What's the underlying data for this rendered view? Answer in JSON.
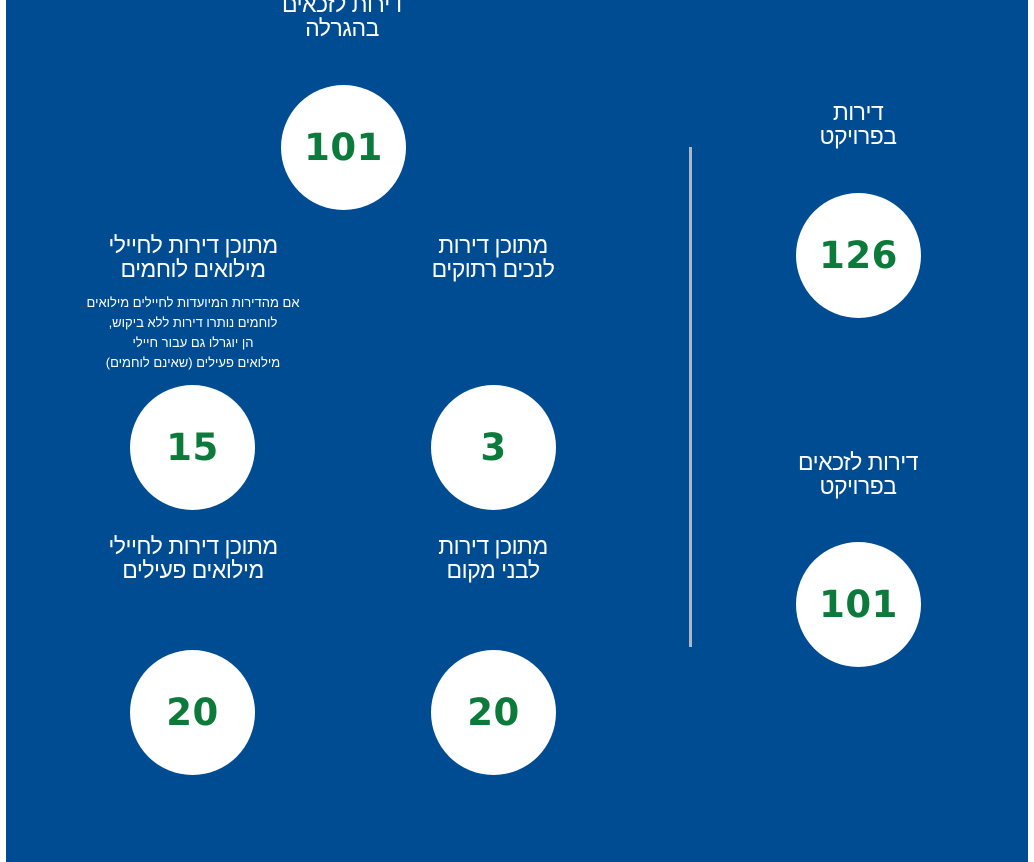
{
  "colors": {
    "background": "#004c92",
    "circle": "#ffffff",
    "number": "#0b7a3a",
    "text": "#ffffff",
    "divider": "#a9b7c8"
  },
  "project_total": {
    "label": "דירות\nבפרויקט",
    "value": "126"
  },
  "project_eligible": {
    "label": "דירות לזכאים\nבפרויקט",
    "value": "101"
  },
  "lottery_eligible": {
    "label": "דירות לזכאים\nבהגרלה",
    "value": "101"
  },
  "disabled_veterans": {
    "label": "מתוכן דירות\nלנכים רתוקים",
    "value": "3"
  },
  "combat_reservists": {
    "label": "מתוכן דירות לחיילי\nמילואים לוחמים",
    "note": "אם מהדירות המיועדות לחיילים מילואים\nלוחמים נותרו דירות ללא ביקוש,\nהן יוגרלו גם עבור חיילי\nמילואים פעילים (שאינם לוחמים)",
    "value": "15"
  },
  "local_residents": {
    "label": "מתוכן דירות\nלבני מקום",
    "value": "20"
  },
  "active_reservists": {
    "label": "מתוכן דירות לחיילי\nמילואים פעילים",
    "value": "20"
  }
}
